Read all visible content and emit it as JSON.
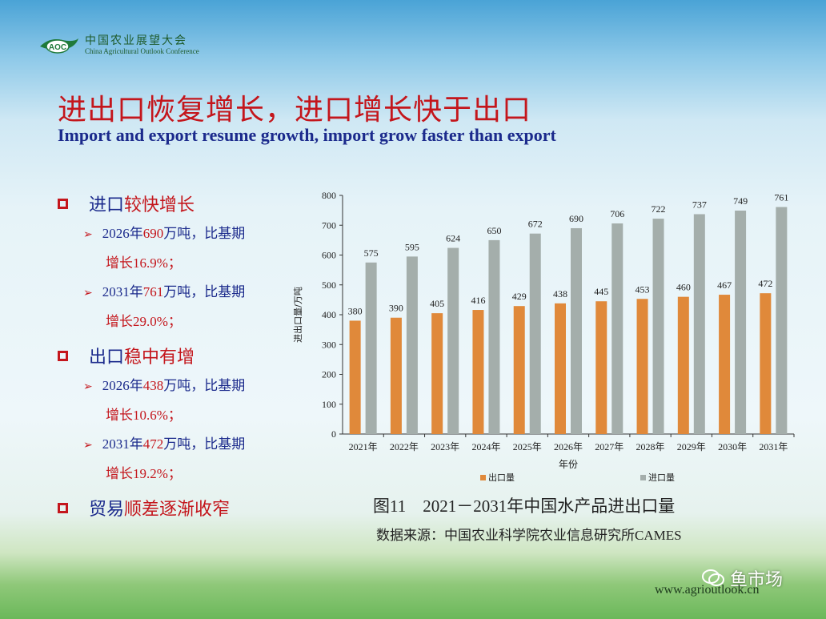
{
  "header": {
    "logo_mark": "AOC",
    "logo_cn": "中国农业展望大会",
    "logo_en": "China Agricultural Outlook Conference",
    "title_cn": "进出口恢复增长，进口增长快于出口",
    "title_en": "Import and export resume growth, import grow faster than export"
  },
  "bullets": [
    {
      "part1": "进口",
      "part2": "较快增长",
      "subs": [
        {
          "a": "2026年",
          "b": "690",
          "c": "万吨，比基期",
          "d": "增长16.9%；"
        },
        {
          "a": "2031年",
          "b": "761",
          "c": "万吨，比基期",
          "d": "增长29.0%；"
        }
      ]
    },
    {
      "part1": "出口",
      "part2": "稳中有增",
      "subs": [
        {
          "a": "2026年",
          "b": "438",
          "c": "万吨，比基期",
          "d": "增长10.6%；"
        },
        {
          "a": "2031年",
          "b": "472",
          "c": "万吨，比基期",
          "d": "增长19.2%；"
        }
      ]
    },
    {
      "part1": "贸易",
      "part2": "顺差逐渐收窄",
      "subs": []
    }
  ],
  "chart_data": {
    "type": "bar",
    "categories": [
      "2021年",
      "2022年",
      "2023年",
      "2024年",
      "2025年",
      "2026年",
      "2027年",
      "2028年",
      "2029年",
      "2030年",
      "2031年"
    ],
    "series": [
      {
        "name": "出口量",
        "color": "#e0893a",
        "values": [
          380,
          390,
          405,
          416,
          429,
          438,
          445,
          453,
          460,
          467,
          472
        ]
      },
      {
        "name": "进口量",
        "color": "#a4aeab",
        "values": [
          575,
          595,
          624,
          650,
          672,
          690,
          706,
          722,
          737,
          749,
          761
        ]
      }
    ],
    "xlabel": "年份",
    "ylabel": "进出口量/万吨",
    "ylim": [
      0,
      800
    ],
    "yticks": [
      0,
      100,
      200,
      300,
      400,
      500,
      600,
      700,
      800
    ],
    "legend": "bottom",
    "grid": false
  },
  "caption": "图11　2021－2031年中国水产品进出口量",
  "source": "数据来源：中国农业科学院农业信息研究所CAMES",
  "website": "www.agrioutlook.cn",
  "watermark": "鱼市场"
}
